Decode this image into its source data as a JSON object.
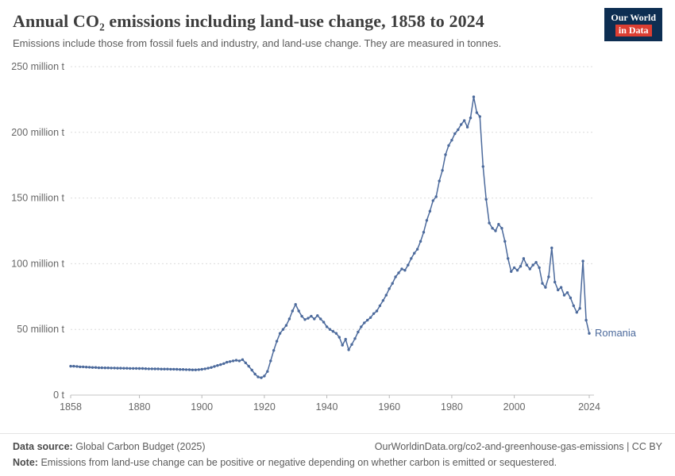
{
  "header": {
    "title": "Annual CO₂ emissions including land-use change, 1858 to 2024",
    "subtitle": "Emissions include those from fossil fuels and industry, and land-use change. They are measured in tonnes.",
    "logo": {
      "line1": "Our World",
      "line2": "in Data"
    }
  },
  "colors": {
    "logo-bg": "#0d2e52",
    "logo-accent": "#dc3e32"
  },
  "chart_data": {
    "type": "line",
    "title": "Annual CO₂ emissions including land-use change, 1858 to 2024",
    "unit": "tonnes",
    "xlim": [
      1858,
      2024
    ],
    "ylim": [
      0,
      250
    ],
    "grid": "dashed-horizontal",
    "legend_position": "end-of-line",
    "x_ticks": [
      1858,
      1880,
      1900,
      1920,
      1940,
      1960,
      1980,
      2000,
      2024
    ],
    "y_ticks": [
      0,
      50,
      100,
      150,
      200,
      250
    ],
    "y_tick_labels": [
      "0 t",
      "50 million t",
      "100 million t",
      "150 million t",
      "200 million t",
      "250 million t"
    ],
    "series": [
      {
        "name": "Romania",
        "color": "#4C6A9C",
        "start_year": 1858,
        "unit": "million t",
        "values": [
          22,
          22,
          21.8,
          21.5,
          21.5,
          21.3,
          21.2,
          21,
          21,
          20.8,
          20.8,
          20.7,
          20.7,
          20.6,
          20.6,
          20.5,
          20.5,
          20.4,
          20.4,
          20.3,
          20.3,
          20.3,
          20.2,
          20.2,
          20.1,
          20,
          20,
          19.9,
          19.9,
          19.8,
          19.8,
          19.8,
          19.7,
          19.7,
          19.6,
          19.5,
          19.5,
          19.4,
          19.3,
          19.2,
          19.2,
          19.4,
          19.6,
          20,
          20.5,
          21,
          21.8,
          22.5,
          23.2,
          24,
          25,
          25.5,
          26,
          26.5,
          26,
          27,
          24.5,
          22,
          19,
          16,
          13.8,
          13.2,
          14.5,
          18,
          26,
          34,
          41,
          47,
          50,
          53,
          58,
          64,
          69,
          64,
          60,
          57.5,
          58.5,
          60,
          58,
          60.5,
          58,
          55.5,
          52,
          50,
          48.5,
          47,
          44,
          38,
          42.5,
          34.5,
          38.5,
          43,
          48,
          52,
          55,
          57,
          59,
          62,
          64,
          68,
          72,
          76,
          81,
          85,
          90,
          93,
          96,
          95,
          99,
          104,
          108,
          111,
          117,
          124,
          133,
          140,
          148,
          151,
          163,
          171,
          183,
          190,
          194,
          199,
          202,
          206,
          209,
          204,
          211,
          227,
          215,
          212,
          174,
          149,
          131,
          127,
          125,
          130,
          127,
          117,
          104,
          94,
          97,
          95,
          98,
          104,
          99,
          96,
          99,
          101,
          97,
          85,
          82,
          90,
          112,
          86,
          80,
          82,
          76,
          78,
          74,
          68,
          63,
          66,
          102,
          57,
          47
        ]
      }
    ]
  },
  "footer": {
    "datasource_label": "Data source:",
    "datasource": "Global Carbon Budget (2025)",
    "link": "OurWorldinData.org/co2-and-greenhouse-gas-emissions | CC BY",
    "note_label": "Note:",
    "note": "Emissions from land-use change can be positive or negative depending on whether carbon is emitted or sequestered."
  }
}
